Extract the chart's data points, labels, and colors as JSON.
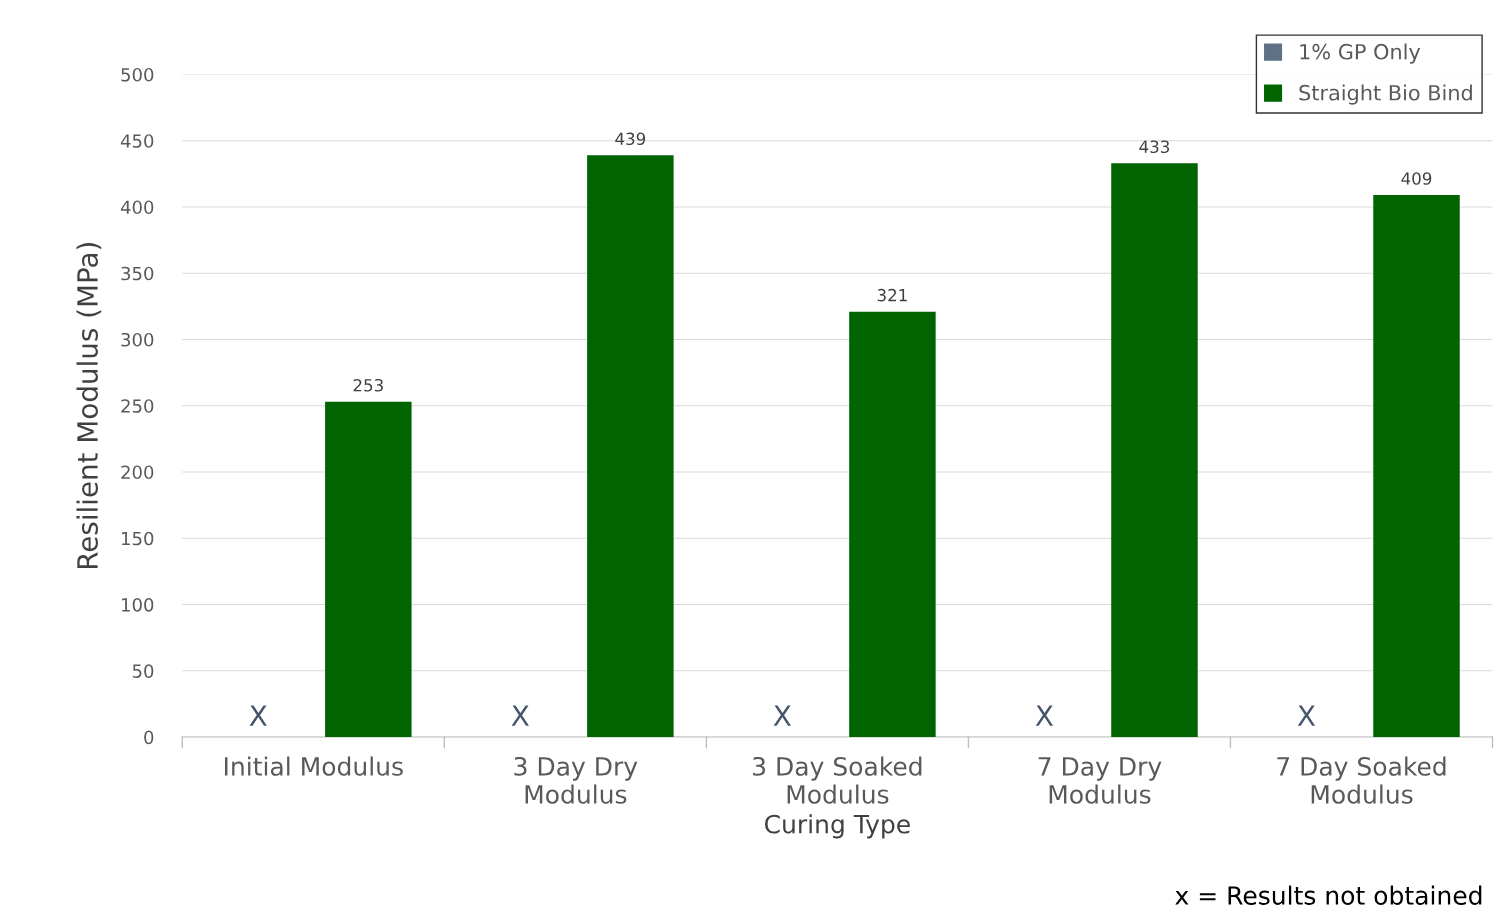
{
  "chart_data": {
    "type": "bar",
    "xlabel": "Curing Type",
    "ylabel": "Resilient Modulus (MPa)",
    "categories": [
      "Initial Modulus",
      "3 Day Dry\nModulus",
      "3 Day Soaked\nModulus",
      "7 Day Dry\nModulus",
      "7 Day Soaked\nModulus"
    ],
    "series": [
      {
        "name": "1% GP Only",
        "color": "#5f7285",
        "values": [
          null,
          null,
          null,
          null,
          null
        ]
      },
      {
        "name": "Straight Bio Bind",
        "color": "#006400",
        "values": [
          253,
          439,
          321,
          433,
          409
        ]
      }
    ],
    "ylim": [
      0,
      500
    ],
    "yticks": [
      0,
      50,
      100,
      150,
      200,
      250,
      300,
      350,
      400,
      450,
      500
    ],
    "grid": "y",
    "legend": "top right",
    "data_labels": true,
    "annotations": [
      "X",
      "X",
      "X",
      "X",
      "X",
      "x = Results not obtained"
    ]
  }
}
